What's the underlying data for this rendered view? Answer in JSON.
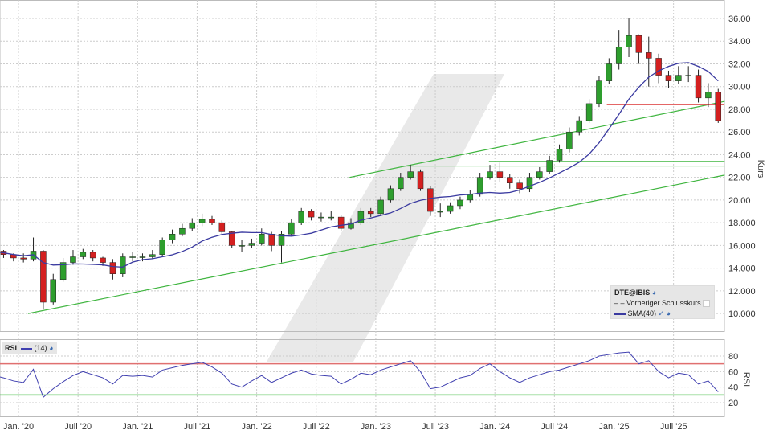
{
  "chart_data": [
    {
      "type": "candlestick",
      "symbol": "DTE@IBIS",
      "ylabel": "Kurs",
      "ylim": [
        9,
        37
      ],
      "yticks": [
        "10.000",
        "12.000",
        "14.000",
        "16.000",
        "18.000",
        "20.00",
        "22.00",
        "24.00",
        "26.00",
        "28.00",
        "30.00",
        "32.00",
        "34.00",
        "36.00"
      ],
      "ytick_values": [
        10,
        12,
        14,
        16,
        18,
        20,
        22,
        24,
        26,
        28,
        30,
        32,
        34,
        36
      ],
      "xticks": [
        "Jan. '20",
        "Juli '20",
        "Jan. '21",
        "Juli '21",
        "Jan. '22",
        "Juli '22",
        "Jan. '23",
        "Juli '23",
        "Jan. '24",
        "Juli '24",
        "Jan. '25",
        "Juli '25"
      ],
      "xtick_values": [
        2020.0,
        2020.5,
        2021.0,
        2021.5,
        2022.0,
        2022.5,
        2023.0,
        2023.5,
        2024.0,
        2024.5,
        2025.0,
        2025.5
      ],
      "x_start": "2019-10",
      "monthly_close": [
        15.5,
        15.2,
        14.9,
        14.8,
        15.5,
        11.0,
        13.0,
        14.5,
        15.0,
        15.4,
        14.9,
        14.5,
        13.5,
        15.0,
        15.0,
        15.0,
        15.2,
        16.5,
        17.0,
        17.5,
        18.0,
        18.3,
        18.0,
        17.2,
        16.0,
        16.0,
        16.2,
        17.0,
        16.0,
        17.0,
        18.0,
        19.0,
        18.5,
        18.5,
        18.5,
        17.5,
        18.0,
        19.0,
        18.8,
        20.0,
        21.0,
        22.0,
        22.5,
        21.0,
        19.0,
        19.0,
        19.5,
        20.0,
        20.5,
        22.0,
        22.5,
        22.0,
        21.5,
        21.0,
        22.0,
        22.5,
        23.5,
        24.5,
        26.0,
        27.0,
        28.5,
        30.5,
        32.0,
        33.5,
        34.5,
        33.0,
        32.5,
        31.0,
        30.5,
        31.0,
        31.0,
        29.0,
        29.5,
        27.0
      ],
      "monthly_high": [
        15.8,
        15.6,
        15.3,
        15.3,
        16.7,
        15.6,
        13.5,
        14.9,
        15.6,
        15.7,
        15.6,
        15.0,
        14.8,
        15.3,
        15.4,
        15.3,
        15.6,
        16.7,
        17.4,
        17.9,
        18.4,
        18.8,
        18.6,
        18.2,
        17.3,
        16.5,
        16.6,
        17.5,
        17.2,
        17.3,
        18.3,
        19.3,
        19.2,
        18.9,
        19.0,
        18.7,
        18.4,
        19.3,
        19.3,
        20.3,
        21.3,
        22.4,
        23.1,
        22.7,
        21.2,
        19.7,
        19.8,
        20.3,
        20.9,
        22.4,
        23.1,
        23.3,
        22.3,
        21.8,
        22.4,
        22.9,
        23.9,
        24.9,
        26.4,
        27.4,
        28.9,
        30.9,
        32.5,
        35.0,
        36.0,
        34.6,
        34.4,
        32.9,
        31.4,
        31.8,
        31.8,
        31.5,
        30.3,
        29.8
      ],
      "monthly_low": [
        15.2,
        14.9,
        14.6,
        14.5,
        14.6,
        10.4,
        10.8,
        12.8,
        14.3,
        14.8,
        14.6,
        14.2,
        13.0,
        13.2,
        14.6,
        14.6,
        14.8,
        15.0,
        16.2,
        16.8,
        17.3,
        17.7,
        17.8,
        17.0,
        15.8,
        15.4,
        15.8,
        16.0,
        15.5,
        14.5,
        16.8,
        17.8,
        18.2,
        18.1,
        18.2,
        17.3,
        17.4,
        17.8,
        18.5,
        18.6,
        19.8,
        20.8,
        21.8,
        20.8,
        18.6,
        18.5,
        18.8,
        19.2,
        19.8,
        20.3,
        21.8,
        21.6,
        21.0,
        20.6,
        20.7,
        21.8,
        22.3,
        23.3,
        24.2,
        25.7,
        26.8,
        28.2,
        30.2,
        31.5,
        32.6,
        32.0,
        30.0,
        30.3,
        29.9,
        30.2,
        30.4,
        28.6,
        28.2,
        26.8
      ],
      "sma_label": "SMA(40)",
      "sma_weeks": 40,
      "sma_color": "#3a3aa0",
      "up_color": "#2e9e2e",
      "down_color": "#d42020",
      "legend": {
        "title": "DTE@IBIS",
        "prev_close_label": "Vorheriger Schlusskurs",
        "sma_label": "SMA(40)"
      },
      "prev_close": 28.4,
      "prev_close_from": 2024.94,
      "trendlines": [
        {
          "color": "#3fb53f",
          "x1": 2020.08,
          "y1": 10.0,
          "x2": 2025.93,
          "y2": 22.2
        },
        {
          "color": "#3fb53f",
          "x1": 2022.78,
          "y1": 22.0,
          "x2": 2025.93,
          "y2": 28.7
        },
        {
          "color": "#3fb53f",
          "x1": 2023.22,
          "y1": 23.0,
          "x2": 2025.93,
          "y2": 23.0
        },
        {
          "color": "#3fb53f",
          "x1": 2023.95,
          "y1": 23.4,
          "x2": 2025.93,
          "y2": 23.4
        }
      ]
    },
    {
      "type": "line",
      "title": "RSI",
      "series_label": "(14)",
      "ylabel": "RSI",
      "ylim": [
        12,
        90
      ],
      "yticks": [
        "20",
        "40",
        "60",
        "80"
      ],
      "ytick_values": [
        20,
        40,
        60,
        80
      ],
      "upper_band": 70,
      "lower_band": 30,
      "upper_color": "#e07070",
      "lower_color": "#50c050",
      "line_color": "#4040b0",
      "values": [
        55,
        52,
        48,
        46,
        63,
        27,
        38,
        47,
        55,
        60,
        56,
        52,
        44,
        55,
        54,
        55,
        53,
        62,
        65,
        68,
        70,
        72,
        66,
        58,
        44,
        40,
        48,
        55,
        46,
        52,
        58,
        62,
        57,
        55,
        54,
        44,
        50,
        58,
        56,
        62,
        66,
        70,
        74,
        60,
        38,
        40,
        46,
        52,
        55,
        64,
        70,
        60,
        52,
        46,
        52,
        56,
        60,
        62,
        66,
        70,
        74,
        80,
        82,
        84,
        85,
        70,
        74,
        60,
        52,
        58,
        56,
        44,
        48,
        34
      ]
    }
  ]
}
